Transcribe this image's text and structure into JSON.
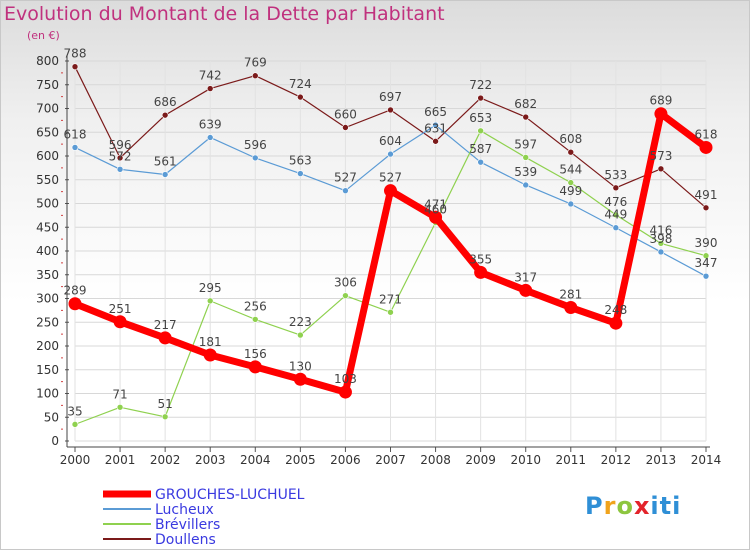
{
  "title": "Evolution du Montant de la Dette par Habitant",
  "subtitle": "(en €)",
  "logo_text": "Proxiti",
  "chart_data": {
    "type": "line",
    "title": "Evolution du Montant de la Dette par Habitant",
    "subtitle": "(en €)",
    "xlabel": "",
    "ylabel": "",
    "categories": [
      "2000",
      "2001",
      "2002",
      "2003",
      "2004",
      "2005",
      "2006",
      "2007",
      "2008",
      "2009",
      "2010",
      "2011",
      "2012",
      "2013",
      "2014"
    ],
    "ylim": [
      0,
      800
    ],
    "yticks": [
      0,
      50,
      100,
      150,
      200,
      250,
      300,
      350,
      400,
      450,
      500,
      550,
      600,
      650,
      700,
      750,
      800
    ],
    "grid": true,
    "legend_position": "bottom-left",
    "series": [
      {
        "name": "GROUCHES-LUCHUEL",
        "color": "#ff0000",
        "width": 7,
        "values": [
          289,
          251,
          217,
          181,
          156,
          130,
          103,
          527,
          471,
          355,
          317,
          281,
          248,
          689,
          618
        ]
      },
      {
        "name": "Lucheux",
        "color": "#5b9bd5",
        "width": 1.2,
        "values": [
          618,
          572,
          561,
          639,
          596,
          563,
          527,
          604,
          665,
          587,
          539,
          499,
          449,
          398,
          347
        ]
      },
      {
        "name": "Brévillers",
        "color": "#8fd14f",
        "width": 1.2,
        "values": [
          35,
          71,
          51,
          295,
          256,
          223,
          306,
          271,
          460,
          653,
          597,
          544,
          476,
          416,
          390
        ]
      },
      {
        "name": "Doullens",
        "color": "#7b1a1a",
        "width": 1.2,
        "values": [
          788,
          596,
          686,
          742,
          769,
          724,
          660,
          697,
          631,
          722,
          682,
          608,
          533,
          573,
          491
        ]
      }
    ]
  }
}
